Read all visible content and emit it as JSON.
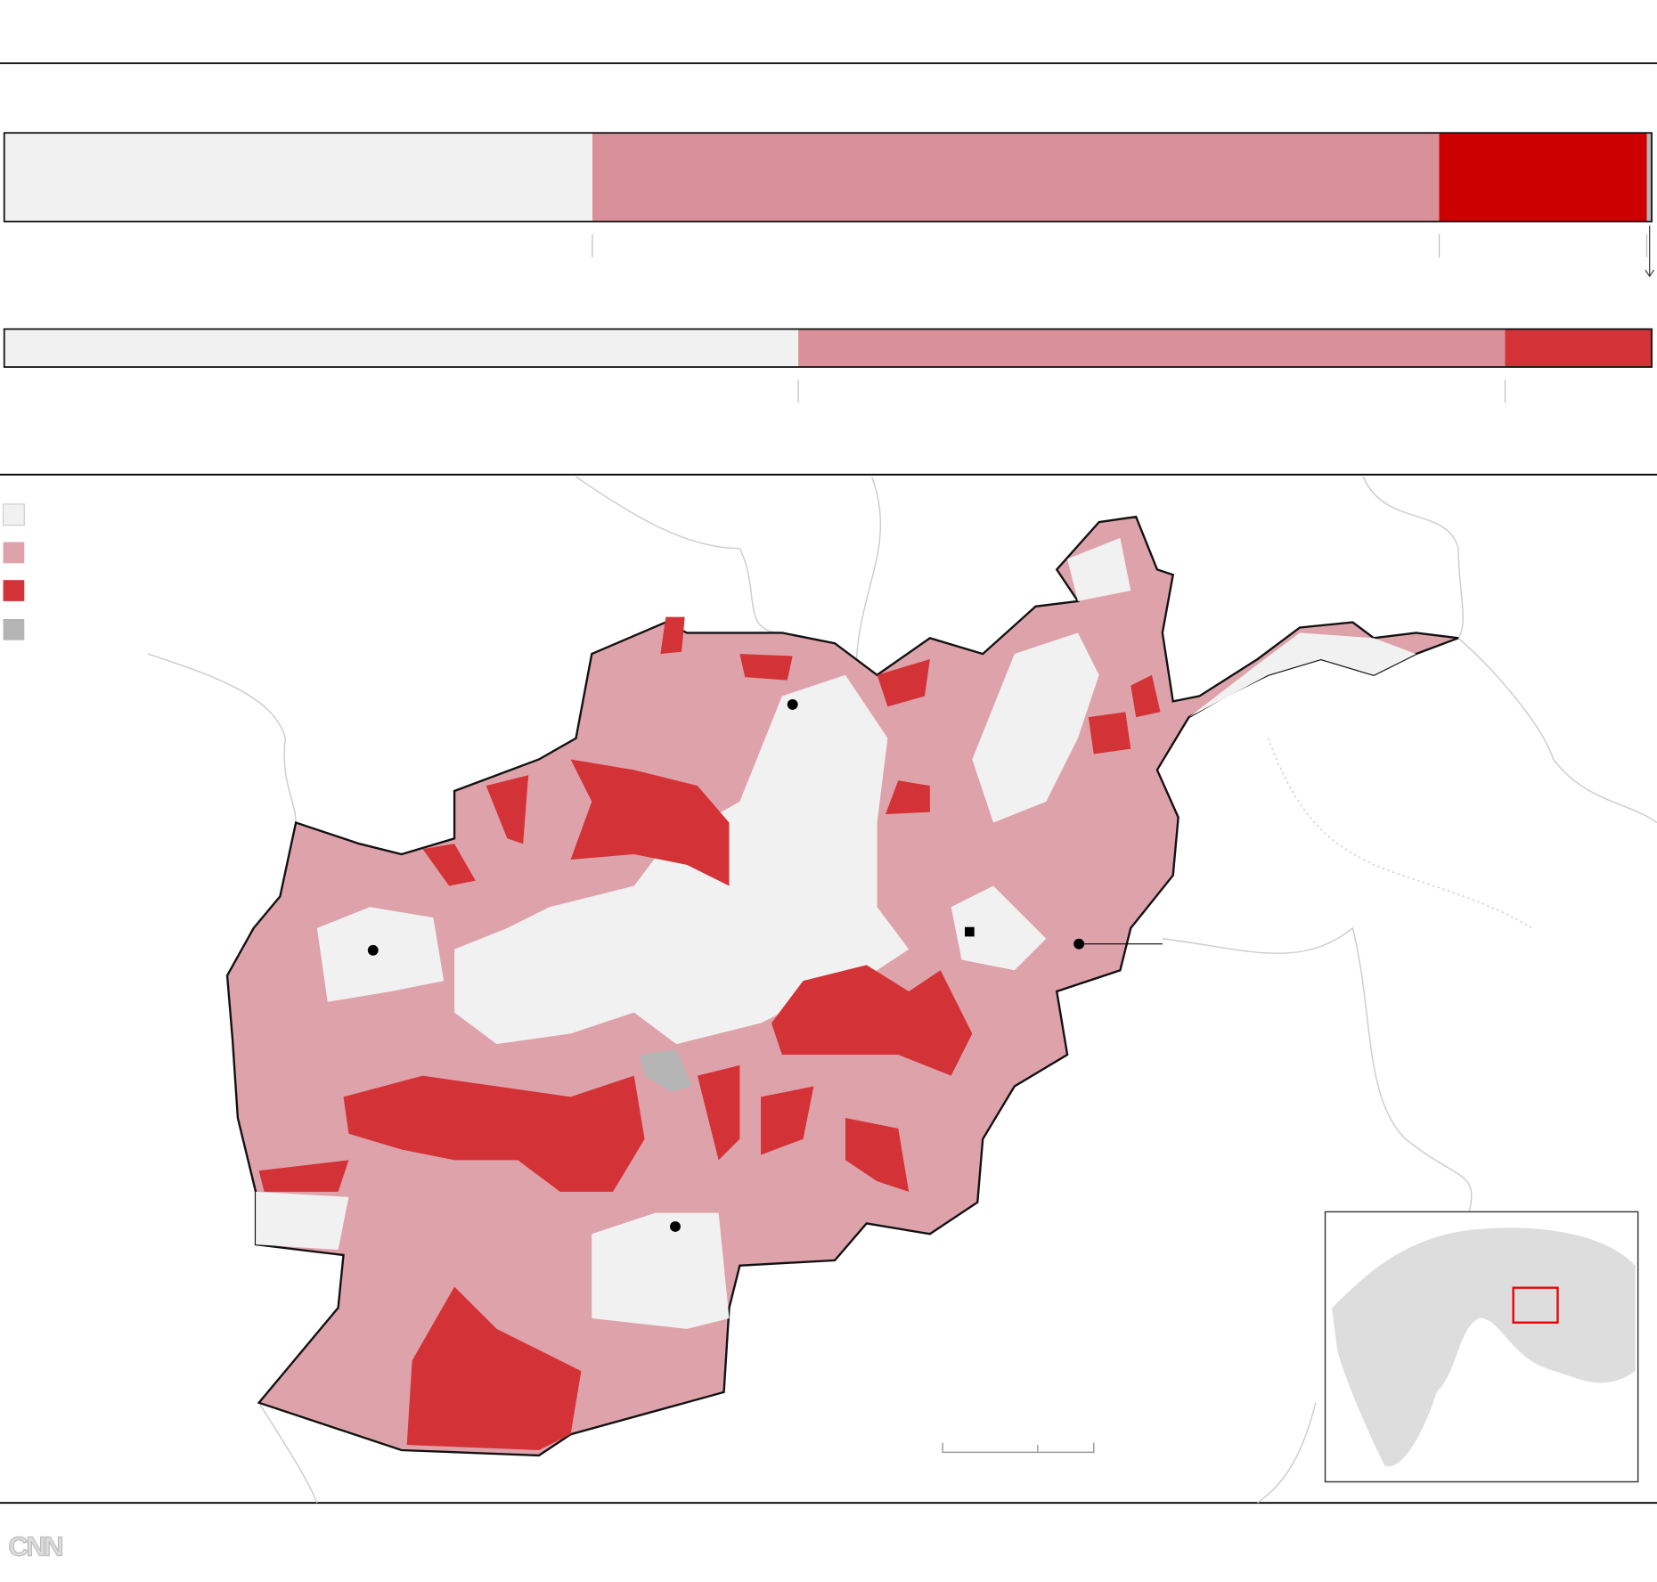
{
  "logo": "CNN",
  "chart_data": [
    {
      "type": "stacked-bar",
      "xlim": [
        0,
        100
      ],
      "series": [
        {
          "color": "#f1f1f1",
          "values": [
            35.7
          ]
        },
        {
          "color": "#da9098",
          "values": [
            51.4
          ]
        },
        {
          "color": "#cc0000",
          "values": [
            12.6
          ]
        },
        {
          "color": "#b4b4b4",
          "values": [
            0.3
          ]
        }
      ]
    },
    {
      "type": "stacked-bar",
      "xlim": [
        0,
        100
      ],
      "series": [
        {
          "color": "#f1f1f1",
          "values": [
            48.2
          ]
        },
        {
          "color": "#da9098",
          "values": [
            42.9
          ]
        },
        {
          "color": "#d33236",
          "values": [
            8.9
          ]
        }
      ]
    }
  ]
}
